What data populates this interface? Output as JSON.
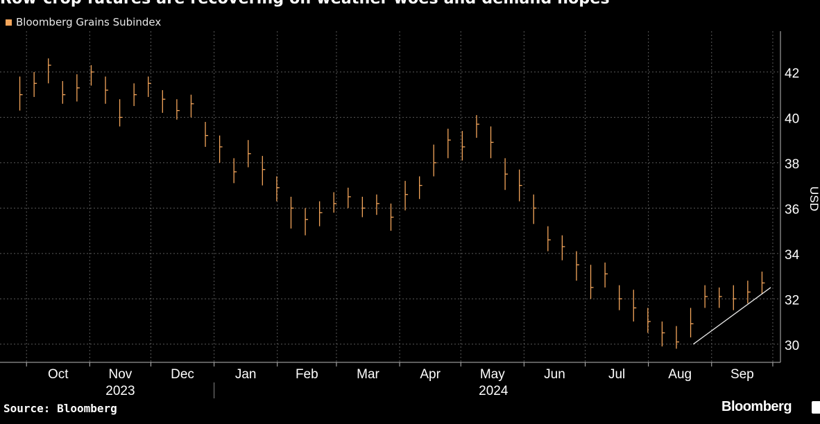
{
  "header": {
    "title": "Row-crop futures are recovering on weather woes and demand hopes"
  },
  "legend": {
    "label": "Bloomberg Grains Subindex",
    "color": "#f5a65b"
  },
  "footer": {
    "source": "Source: Bloomberg",
    "brand": "Bloomberg"
  },
  "chart_data": {
    "type": "line",
    "title": "Row-crop futures are recovering on weather woes and demand hopes",
    "ylabel": "USD",
    "ylim": [
      29.2,
      43.8
    ],
    "yticks": [
      30,
      32,
      34,
      36,
      38,
      40,
      42
    ],
    "grid": true,
    "legend_placement": "top-left",
    "month_ticks": [
      "Oct",
      "Nov",
      "Dec",
      "Jan",
      "Feb",
      "Mar",
      "Apr",
      "May",
      "Jun",
      "Jul",
      "Aug",
      "Sep"
    ],
    "year_labels": [
      "2023",
      "2024"
    ],
    "series": [
      {
        "name": "Bloomberg Grains Subindex",
        "color": "#f5a65b",
        "x": [
          "2023-09-25",
          "2023-10-02",
          "2023-10-09",
          "2023-10-16",
          "2023-10-23",
          "2023-10-30",
          "2023-11-06",
          "2023-11-13",
          "2023-11-20",
          "2023-11-27",
          "2023-12-04",
          "2023-12-11",
          "2023-12-18",
          "2023-12-25",
          "2024-01-01",
          "2024-01-08",
          "2024-01-15",
          "2024-01-22",
          "2024-01-29",
          "2024-02-05",
          "2024-02-12",
          "2024-02-19",
          "2024-02-26",
          "2024-03-04",
          "2024-03-11",
          "2024-03-18",
          "2024-03-25",
          "2024-04-01",
          "2024-04-08",
          "2024-04-15",
          "2024-04-22",
          "2024-04-29",
          "2024-05-06",
          "2024-05-13",
          "2024-05-20",
          "2024-05-27",
          "2024-06-03",
          "2024-06-10",
          "2024-06-17",
          "2024-06-24",
          "2024-07-01",
          "2024-07-08",
          "2024-07-15",
          "2024-07-22",
          "2024-07-29",
          "2024-08-05",
          "2024-08-12",
          "2024-08-19",
          "2024-08-26",
          "2024-09-02",
          "2024-09-09",
          "2024-09-16",
          "2024-09-23"
        ],
        "values": [
          41.0,
          41.5,
          42.3,
          41.0,
          41.3,
          42.0,
          41.2,
          40.0,
          41.0,
          41.5,
          40.8,
          40.3,
          40.6,
          39.2,
          38.7,
          37.6,
          38.4,
          37.7,
          36.9,
          36.0,
          35.5,
          35.8,
          36.2,
          36.5,
          36.0,
          36.2,
          35.6,
          36.6,
          37.0,
          38.0,
          39.0,
          38.7,
          39.7,
          38.9,
          37.5,
          37.0,
          36.0,
          34.6,
          34.3,
          33.5,
          32.5,
          33.1,
          32.0,
          31.6,
          31.0,
          30.5,
          30.1,
          30.9,
          32.1,
          32.1,
          32.0,
          32.3,
          32.7
        ],
        "highs": [
          41.8,
          42.0,
          42.6,
          41.6,
          41.9,
          42.3,
          41.8,
          40.8,
          41.5,
          41.8,
          41.2,
          40.8,
          41.0,
          39.8,
          39.2,
          38.2,
          39.0,
          38.3,
          37.4,
          36.5,
          36.0,
          36.3,
          36.7,
          36.9,
          36.5,
          36.6,
          36.2,
          37.2,
          37.4,
          38.8,
          39.5,
          39.4,
          40.1,
          39.6,
          38.2,
          37.7,
          36.6,
          35.2,
          34.8,
          34.1,
          33.5,
          33.6,
          32.6,
          32.4,
          31.6,
          31.0,
          30.8,
          31.6,
          32.6,
          32.5,
          32.6,
          32.8,
          33.2
        ],
        "lows": [
          40.3,
          40.9,
          41.5,
          40.6,
          40.7,
          41.4,
          40.6,
          39.6,
          40.5,
          40.9,
          40.2,
          39.9,
          40.0,
          38.7,
          38.0,
          37.1,
          37.8,
          37.0,
          36.3,
          35.1,
          34.8,
          35.2,
          35.8,
          36.0,
          35.6,
          35.7,
          35.0,
          35.9,
          36.4,
          37.4,
          38.2,
          38.1,
          39.1,
          38.2,
          36.8,
          36.3,
          35.3,
          34.1,
          33.7,
          32.8,
          32.0,
          32.5,
          31.5,
          31.0,
          30.5,
          29.9,
          29.8,
          30.3,
          31.6,
          31.6,
          31.5,
          31.8,
          32.2
        ]
      }
    ],
    "trendline": {
      "start": [
        "2024-08-23",
        30.0
      ],
      "end": [
        "2024-09-30",
        32.5
      ],
      "color": "#e8e8e8"
    }
  }
}
